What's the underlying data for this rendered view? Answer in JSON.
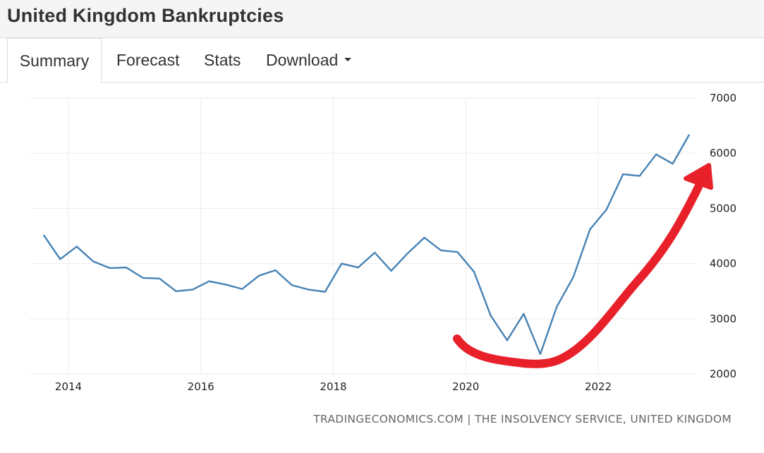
{
  "page": {
    "title": "United Kingdom Bankruptcies"
  },
  "tabs": [
    {
      "label": "Summary",
      "active": true
    },
    {
      "label": "Forecast",
      "active": false
    },
    {
      "label": "Stats",
      "active": false
    },
    {
      "label": "Download",
      "active": false,
      "dropdown": true
    }
  ],
  "chart_data": {
    "type": "line",
    "title": "",
    "xlabel": "",
    "ylabel": "",
    "x_ticks": [
      "2014",
      "2016",
      "2018",
      "2020",
      "2022"
    ],
    "y_ticks": [
      2000,
      3000,
      4000,
      5000,
      6000,
      7000
    ],
    "ylim": [
      2000,
      7000
    ],
    "y_axis_position": "right",
    "grid": true,
    "series": [
      {
        "color": "#4682b4",
        "points": [
          [
            "2013 Q3",
            4520
          ],
          [
            "2013 Q4",
            4080
          ],
          [
            "2014 Q1",
            4310
          ],
          [
            "2014 Q2",
            4040
          ],
          [
            "2014 Q3",
            3920
          ],
          [
            "2014 Q4",
            3930
          ],
          [
            "2015 Q1",
            3740
          ],
          [
            "2015 Q2",
            3730
          ],
          [
            "2015 Q3",
            3500
          ],
          [
            "2015 Q4",
            3530
          ],
          [
            "2016 Q1",
            3680
          ],
          [
            "2016 Q2",
            3620
          ],
          [
            "2016 Q3",
            3540
          ],
          [
            "2016 Q4",
            3780
          ],
          [
            "2017 Q1",
            3880
          ],
          [
            "2017 Q2",
            3610
          ],
          [
            "2017 Q3",
            3530
          ],
          [
            "2017 Q4",
            3490
          ],
          [
            "2018 Q1",
            4000
          ],
          [
            "2018 Q2",
            3930
          ],
          [
            "2018 Q3",
            4200
          ],
          [
            "2018 Q4",
            3870
          ],
          [
            "2019 Q1",
            4190
          ],
          [
            "2019 Q2",
            4470
          ],
          [
            "2019 Q3",
            4240
          ],
          [
            "2019 Q4",
            4210
          ],
          [
            "2020 Q1",
            3850
          ],
          [
            "2020 Q2",
            3060
          ],
          [
            "2020 Q3",
            2610
          ],
          [
            "2020 Q4",
            3090
          ],
          [
            "2021 Q1",
            2360
          ],
          [
            "2021 Q2",
            3220
          ],
          [
            "2021 Q3",
            3760
          ],
          [
            "2021 Q4",
            4620
          ],
          [
            "2022 Q1",
            4980
          ],
          [
            "2022 Q2",
            5620
          ],
          [
            "2022 Q3",
            5590
          ],
          [
            "2022 Q4",
            5980
          ],
          [
            "2023 Q1",
            5810
          ],
          [
            "2023 Q2",
            6340
          ]
        ]
      }
    ],
    "annotation": {
      "type": "curved-arrow",
      "color": "#e8202a",
      "description": "red hand-drawn upward arrow"
    },
    "source": "TRADINGECONOMICS.COM | THE INSOLVENCY SERVICE, UNITED KINGDOM"
  }
}
